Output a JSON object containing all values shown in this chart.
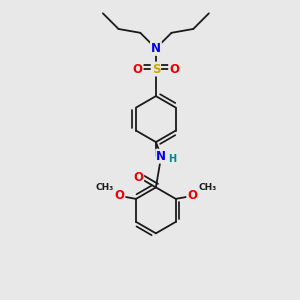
{
  "bg": "#e8e8e8",
  "bond_color": "#1a1a1a",
  "bw": 1.3,
  "atom_colors": {
    "N": "#0000ee",
    "O": "#ee0000",
    "S": "#ccaa00",
    "H": "#008888",
    "C": "#1a1a1a"
  },
  "fs": 8.5,
  "fs_small": 7.0,
  "dbo": 0.07
}
